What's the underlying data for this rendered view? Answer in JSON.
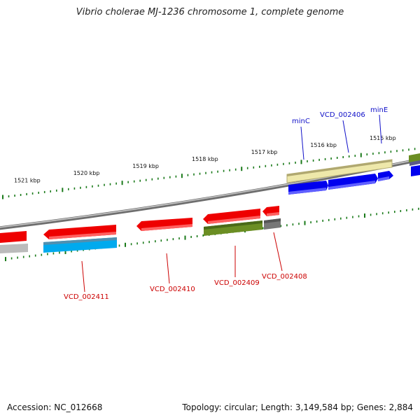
{
  "title": "Vibrio cholerae MJ-1236 chromosome 1, complete genome",
  "footer": {
    "accession": "Accession: NC_012668",
    "summary": "Topology: circular; Length: 3,149,584 bp; Genes: 2,884"
  },
  "colors": {
    "backbone": "#8a8a8a",
    "tick": "#1a7a1a",
    "plus_label": "#1010c8",
    "minus_label": "#cc0000",
    "red": "#ee0000",
    "blue": "#0000ee",
    "cyan": "#00aaee",
    "olive": "#6b8e23",
    "khaki": "#eee8aa",
    "gray": "#bbbbbb",
    "darkgray": "#666666"
  },
  "scale_labels": [
    {
      "text": "1521 kbp",
      "kbp": 1521
    },
    {
      "text": "1520 kbp",
      "kbp": 1520
    },
    {
      "text": "1519 kbp",
      "kbp": 1519
    },
    {
      "text": "1518 kbp",
      "kbp": 1518
    },
    {
      "text": "1517 kbp",
      "kbp": 1517
    },
    {
      "text": "1516 kbp",
      "kbp": 1516
    },
    {
      "text": "1515 kbp",
      "kbp": 1515
    }
  ],
  "gene_labels": [
    {
      "text": "minC",
      "strand": "plus"
    },
    {
      "text": "VCD_002406",
      "strand": "plus"
    },
    {
      "text": "minE",
      "strand": "plus"
    },
    {
      "text": "VCD_002411",
      "strand": "minus"
    },
    {
      "text": "VCD_002410",
      "strand": "minus"
    },
    {
      "text": "VCD_002409",
      "strand": "minus"
    },
    {
      "text": "VCD_002408",
      "strand": "minus"
    }
  ]
}
